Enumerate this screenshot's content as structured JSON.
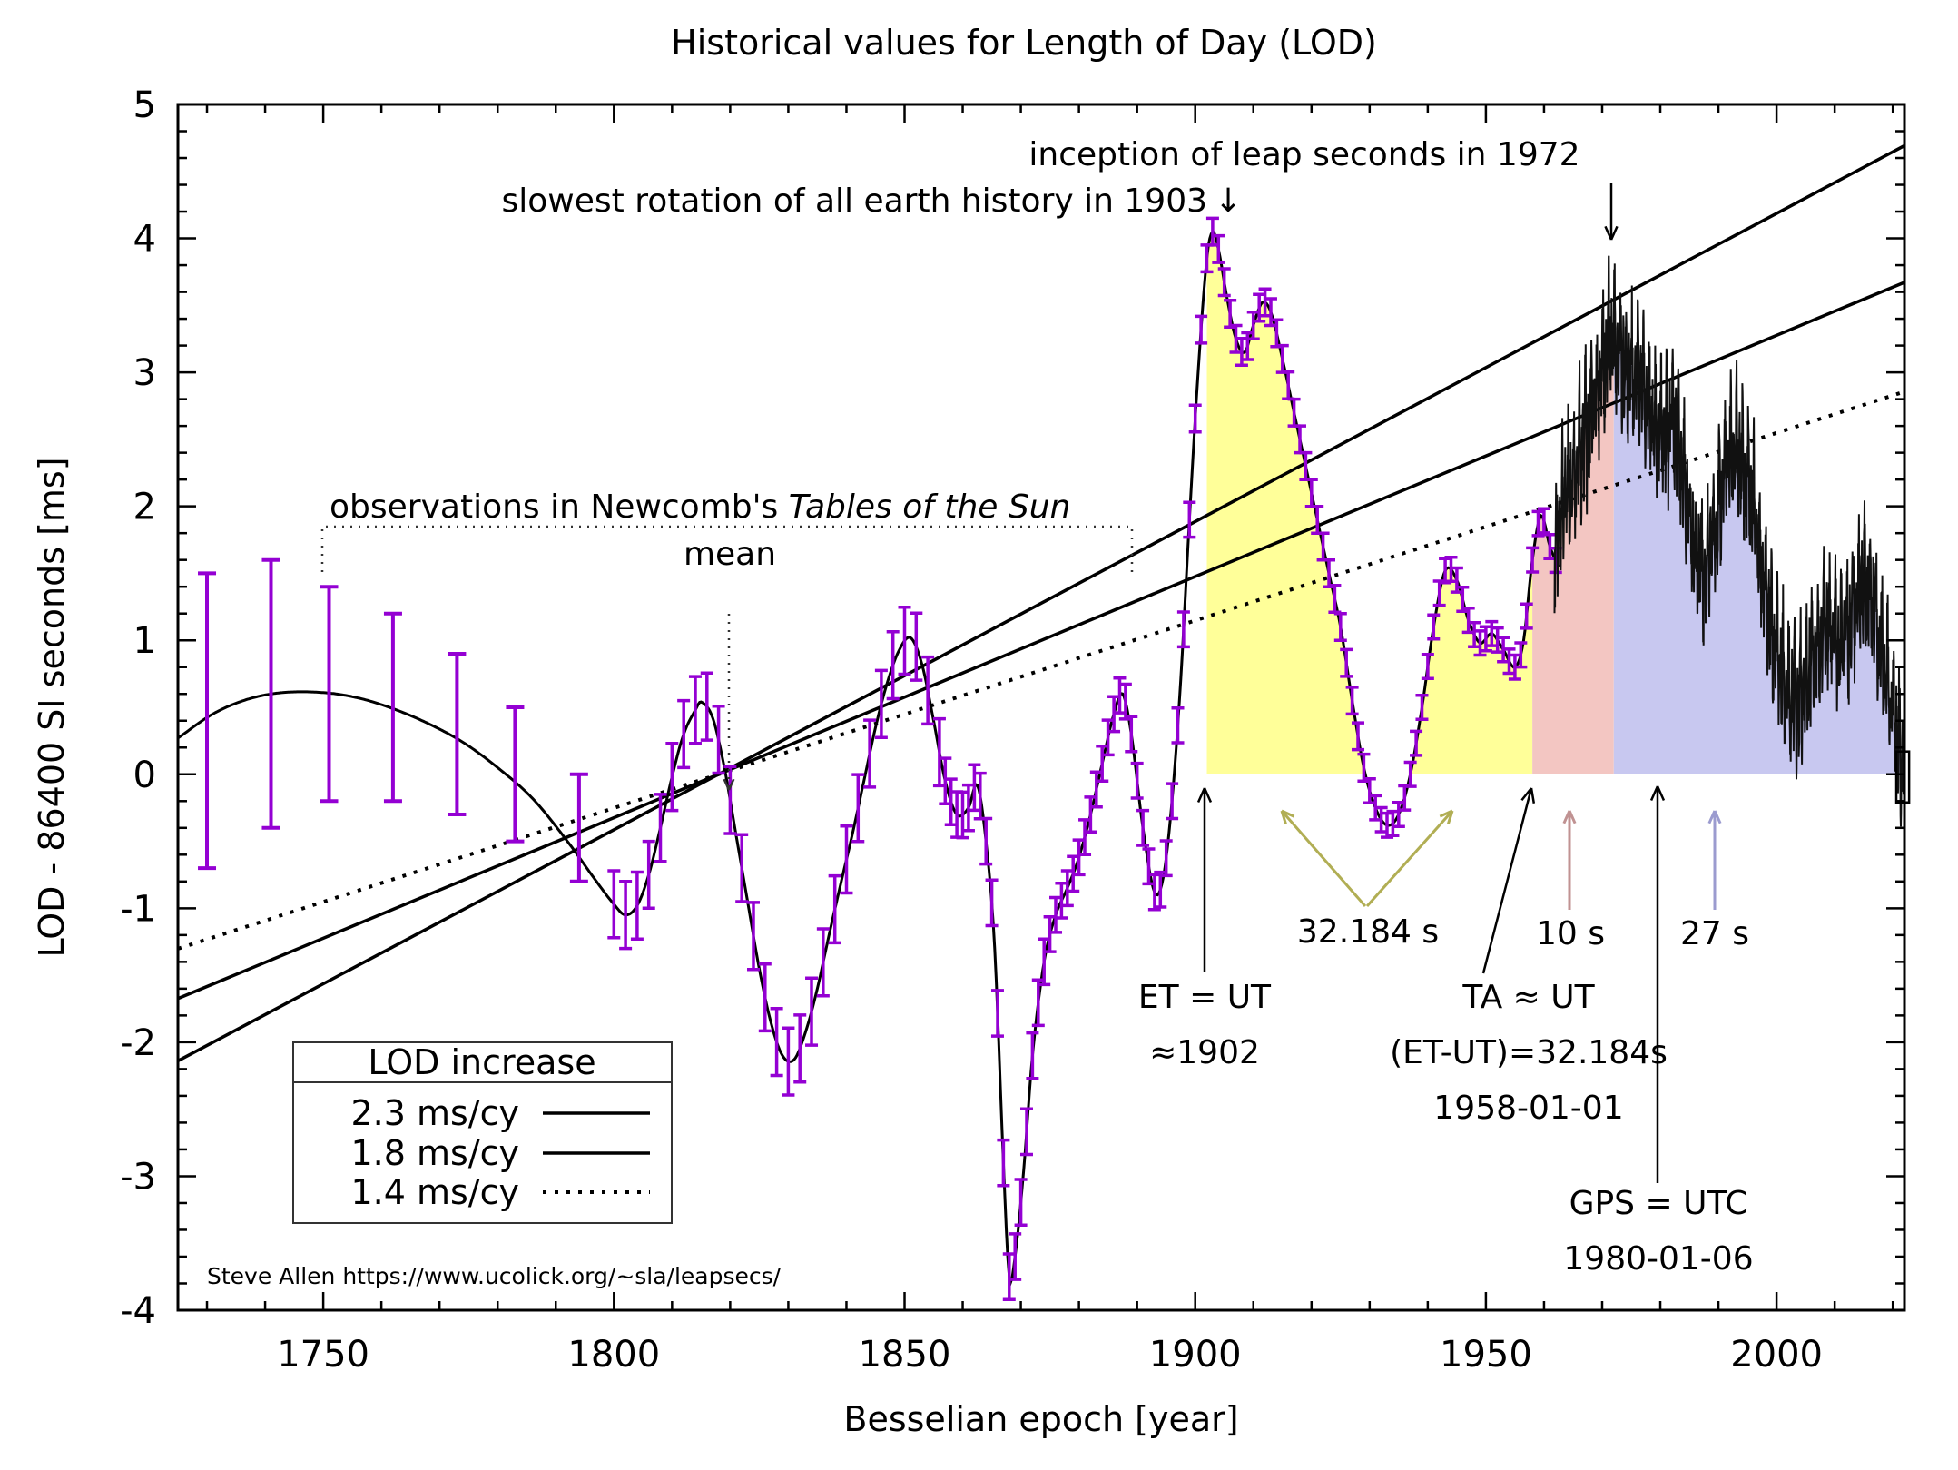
{
  "title": "Historical values for Length of Day (LOD)",
  "axes": {
    "xlabel": "Besselian epoch [year]",
    "ylabel": "LOD - 86400 SI seconds [ms]",
    "xrange": [
      1725,
      2022
    ],
    "yrange": [
      -4,
      5
    ],
    "xticks": [
      {
        "label": "1750",
        "year": 1750
      },
      {
        "label": "1800",
        "year": 1800
      },
      {
        "label": "1850",
        "year": 1850
      },
      {
        "label": "1900",
        "year": 1900
      },
      {
        "label": "1950",
        "year": 1950
      },
      {
        "label": "2000",
        "year": 2000
      }
    ],
    "yticks": [
      {
        "label": "5",
        "value": 5
      },
      {
        "label": "4",
        "value": 4
      },
      {
        "label": "3",
        "value": 3
      },
      {
        "label": "2",
        "value": 2
      },
      {
        "label": "1",
        "value": 1
      },
      {
        "label": "0",
        "value": 0
      },
      {
        "label": "-1",
        "value": -1
      },
      {
        "label": "-2",
        "value": -2
      },
      {
        "label": "-3",
        "value": -3
      },
      {
        "label": "-4",
        "value": -4
      }
    ]
  },
  "legend": {
    "title": "LOD increase",
    "items": [
      {
        "label": "2.3 ms/cy",
        "style": "solid"
      },
      {
        "label": "1.8 ms/cy",
        "style": "solid"
      },
      {
        "label": "1.4 ms/cy",
        "style": "dotted"
      }
    ]
  },
  "credit": "Steve Allen  https://www.ucolick.org/~sla/leapsecs/",
  "annotations": {
    "inception": {
      "text": "inception of leap seconds in 1972"
    },
    "slowest": {
      "text": "slowest rotation of all earth history in 1903",
      "arrow_glyph": "↓"
    },
    "newcomb": {
      "prefix": "observations in Newcomb's ",
      "italic": "Tables of the Sun"
    },
    "mean": {
      "text": "mean"
    },
    "et_ut": {
      "line1": "ET = UT",
      "line2": "≈1902"
    },
    "ta_ut": {
      "line1": "TA ≈ UT",
      "line2": "(ET-UT)=32.184s",
      "line3": "1958-01-01"
    },
    "gps": {
      "line1": "GPS = UTC",
      "line2": "1980-01-06"
    },
    "offset_32": {
      "text": "32.184 s"
    },
    "offset_10": {
      "text": "10 s"
    },
    "offset_27": {
      "text": "27 s"
    }
  },
  "colors": {
    "curve": "#000000",
    "error_bars": "#9400d3",
    "region_yellow": "#ffff99",
    "region_pink": "#f3c6c2",
    "region_blue": "#c8c8f0",
    "olive_label": "#b1ae54",
    "rose_label": "#c09292",
    "lavender_label": "#9b9bcf",
    "modern_line": "#111111"
  },
  "chart_data": {
    "type": "line",
    "title": "Historical values for Length of Day (LOD)",
    "xlabel": "Besselian epoch [year]",
    "ylabel": "LOD - 86400 SI seconds [ms]",
    "xlim": [
      1725,
      2022
    ],
    "ylim": [
      -4,
      5
    ],
    "trend_lines": [
      {
        "name": "2.3 ms/cy",
        "slope_ms_per_century": 2.3,
        "zero_year": 1818,
        "style": "solid"
      },
      {
        "name": "1.8 ms/cy",
        "slope_ms_per_century": 1.8,
        "zero_year": 1818,
        "style": "solid"
      },
      {
        "name": "1.4 ms/cy",
        "slope_ms_per_century": 1.4,
        "zero_year": 1818,
        "style": "dotted"
      }
    ],
    "smooth_curve": [
      [
        1725,
        0.27
      ],
      [
        1731,
        0.45
      ],
      [
        1737,
        0.56
      ],
      [
        1743,
        0.61
      ],
      [
        1750,
        0.61
      ],
      [
        1756,
        0.57
      ],
      [
        1762,
        0.49
      ],
      [
        1768,
        0.38
      ],
      [
        1774,
        0.24
      ],
      [
        1780,
        0.05
      ],
      [
        1786,
        -0.18
      ],
      [
        1792,
        -0.5
      ],
      [
        1797,
        -0.8
      ],
      [
        1800,
        -0.97
      ],
      [
        1802,
        -1.05
      ],
      [
        1804,
        -0.98
      ],
      [
        1806,
        -0.75
      ],
      [
        1808,
        -0.4
      ],
      [
        1810,
        -0.02
      ],
      [
        1812,
        0.3
      ],
      [
        1814,
        0.48
      ],
      [
        1815,
        0.54
      ],
      [
        1817,
        0.42
      ],
      [
        1819,
        0.05
      ],
      [
        1821,
        -0.45
      ],
      [
        1823,
        -0.95
      ],
      [
        1825,
        -1.45
      ],
      [
        1827,
        -1.85
      ],
      [
        1829,
        -2.1
      ],
      [
        1831,
        -2.13
      ],
      [
        1833,
        -1.92
      ],
      [
        1835,
        -1.6
      ],
      [
        1837,
        -1.2
      ],
      [
        1839,
        -0.82
      ],
      [
        1841,
        -0.45
      ],
      [
        1843,
        -0.05
      ],
      [
        1845,
        0.35
      ],
      [
        1847,
        0.68
      ],
      [
        1849,
        0.92
      ],
      [
        1851,
        1.02
      ],
      [
        1853,
        0.82
      ],
      [
        1855,
        0.4
      ],
      [
        1857,
        -0.05
      ],
      [
        1859,
        -0.3
      ],
      [
        1861,
        -0.25
      ],
      [
        1862.5,
        -0.08
      ],
      [
        1864,
        -0.5
      ],
      [
        1865.5,
        -1.3
      ],
      [
        1867,
        -2.9
      ],
      [
        1868,
        -3.75
      ],
      [
        1869,
        -3.6
      ],
      [
        1870.5,
        -2.95
      ],
      [
        1872,
        -2.1
      ],
      [
        1874,
        -1.4
      ],
      [
        1876,
        -1.05
      ],
      [
        1878,
        -0.85
      ],
      [
        1880,
        -0.62
      ],
      [
        1882,
        -0.3
      ],
      [
        1884,
        0.08
      ],
      [
        1886,
        0.45
      ],
      [
        1887.5,
        0.6
      ],
      [
        1889,
        0.3
      ],
      [
        1891,
        -0.4
      ],
      [
        1893,
        -0.88
      ],
      [
        1894.5,
        -0.77
      ],
      [
        1896,
        -0.2
      ],
      [
        1897.5,
        0.7
      ],
      [
        1899,
        1.9
      ],
      [
        1900.5,
        3.0
      ],
      [
        1902,
        3.85
      ],
      [
        1903,
        4.05
      ],
      [
        1904,
        3.92
      ],
      [
        1905.5,
        3.55
      ],
      [
        1907,
        3.25
      ],
      [
        1908.5,
        3.15
      ],
      [
        1910,
        3.35
      ],
      [
        1911.5,
        3.52
      ],
      [
        1913,
        3.45
      ],
      [
        1915,
        3.1
      ],
      [
        1917,
        2.7
      ],
      [
        1919,
        2.3
      ],
      [
        1921,
        1.9
      ],
      [
        1923,
        1.5
      ],
      [
        1925,
        1.1
      ],
      [
        1927,
        0.55
      ],
      [
        1929,
        0.05
      ],
      [
        1931,
        -0.25
      ],
      [
        1933,
        -0.38
      ],
      [
        1935,
        -0.3
      ],
      [
        1937,
        0.0
      ],
      [
        1939,
        0.5
      ],
      [
        1941,
        1.1
      ],
      [
        1943,
        1.52
      ],
      [
        1945,
        1.45
      ],
      [
        1947,
        1.15
      ],
      [
        1949,
        0.98
      ],
      [
        1951,
        1.05
      ],
      [
        1953,
        0.93
      ],
      [
        1955,
        0.8
      ],
      [
        1956.5,
        1.0
      ],
      [
        1958,
        1.6
      ],
      [
        1959.5,
        1.93
      ],
      [
        1961,
        1.7
      ],
      [
        1962.5,
        1.55
      ]
    ],
    "sparse_error_bars": [
      [
        1730,
        0.4,
        1.1
      ],
      [
        1741,
        0.6,
        1.0
      ],
      [
        1751,
        0.6,
        0.8
      ],
      [
        1762,
        0.5,
        0.7
      ],
      [
        1773,
        0.3,
        0.6
      ],
      [
        1783,
        0.0,
        0.5
      ],
      [
        1794,
        -0.4,
        0.4
      ]
    ],
    "dense_error_bar_eras": [
      {
        "from": 1800,
        "to": 1856,
        "step": 2,
        "err": 0.25
      },
      {
        "from": 1857,
        "to": 1874,
        "step": 1,
        "err": 0.17
      },
      {
        "from": 1875,
        "to": 1899,
        "step": 1,
        "err": 0.13
      },
      {
        "from": 1900,
        "to": 1929,
        "step": 1,
        "err": 0.1
      },
      {
        "from": 1930,
        "to": 1962,
        "step": 1,
        "err": 0.09
      }
    ],
    "modern_series": [
      [
        1961.8,
        1.65
      ],
      [
        1963,
        1.95
      ],
      [
        1964,
        2.15
      ],
      [
        1966,
        2.4
      ],
      [
        1968,
        2.65
      ],
      [
        1970,
        3.0
      ],
      [
        1971.5,
        3.25
      ],
      [
        1973,
        3.1
      ],
      [
        1975,
        2.95
      ],
      [
        1977,
        2.85
      ],
      [
        1979,
        2.6
      ],
      [
        1981,
        2.55
      ],
      [
        1982.5,
        2.6
      ],
      [
        1984,
        2.15
      ],
      [
        1986,
        1.7
      ],
      [
        1987.5,
        1.5
      ],
      [
        1989,
        1.75
      ],
      [
        1991,
        2.2
      ],
      [
        1992.5,
        2.4
      ],
      [
        1994,
        2.3
      ],
      [
        1996,
        2.0
      ],
      [
        1998,
        1.4
      ],
      [
        2000,
        0.95
      ],
      [
        2002,
        0.65
      ],
      [
        2003.5,
        0.5
      ],
      [
        2005,
        0.7
      ],
      [
        2007,
        1.0
      ],
      [
        2009,
        1.1
      ],
      [
        2011,
        0.95
      ],
      [
        2013,
        1.2
      ],
      [
        2015,
        1.4
      ],
      [
        2016.5,
        1.3
      ],
      [
        2018,
        0.95
      ],
      [
        2019.5,
        0.6
      ],
      [
        2021,
        0.25
      ],
      [
        2022,
        0.0
      ]
    ],
    "modern_noise_amplitude": 0.5,
    "regions": [
      {
        "name": "ET-UT epoch",
        "from": 1902,
        "to": 1958,
        "label": "32.184 s"
      },
      {
        "name": "10 s epoch",
        "from": 1958,
        "to": 1972,
        "label": "10 s"
      },
      {
        "name": "27 s epoch",
        "from": 1972,
        "to": 2022,
        "label": "27 s"
      }
    ],
    "last_point_box": {
      "year_from": 2020.6,
      "year_to": 2022.8,
      "value": -0.02,
      "half_height": 0.19
    }
  }
}
